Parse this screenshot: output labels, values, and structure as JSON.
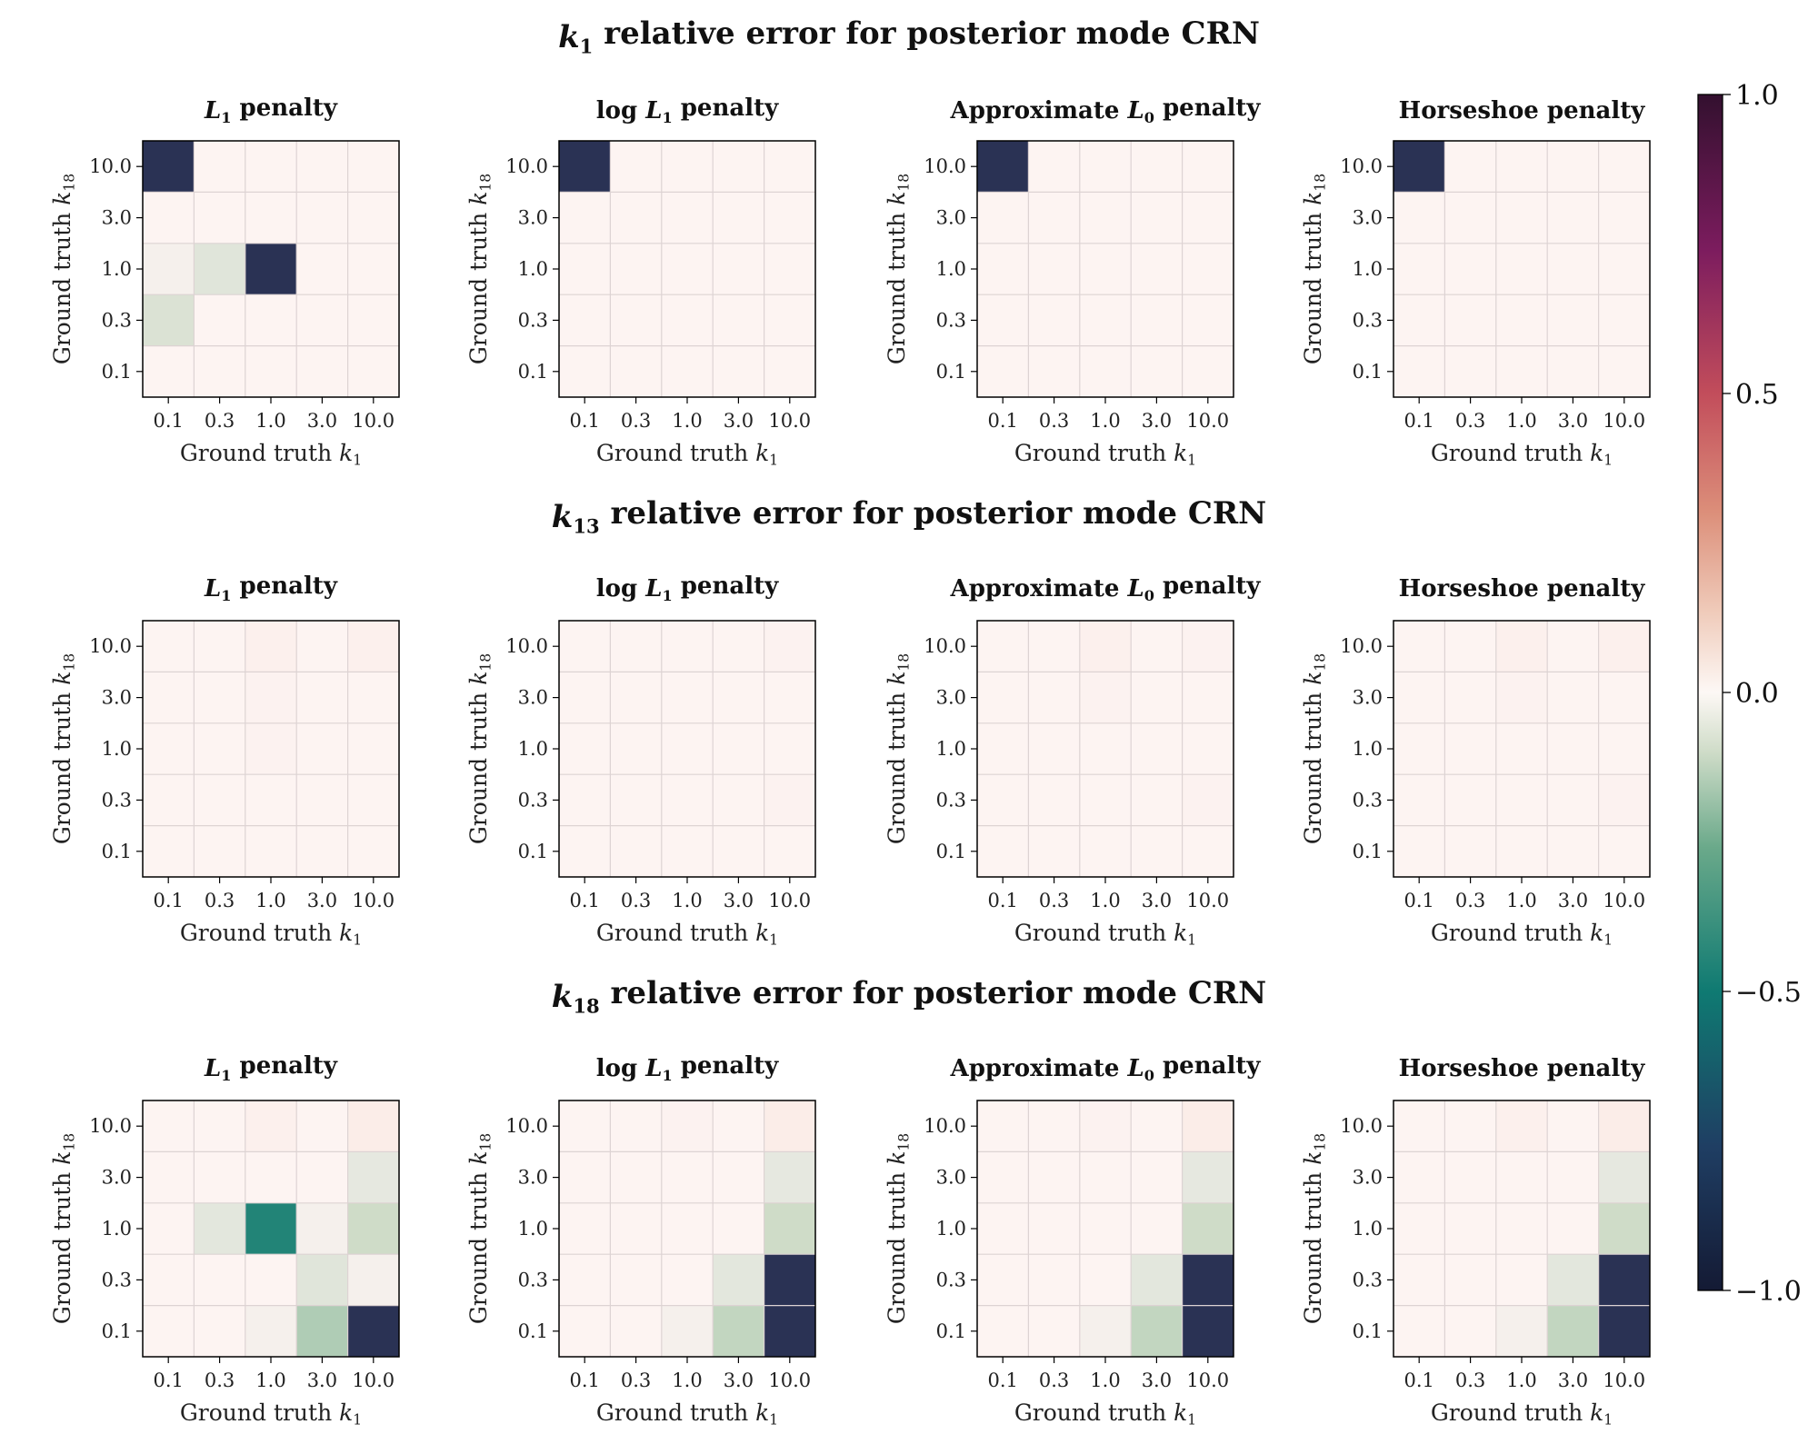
{
  "figure": {
    "row_titles": [
      {
        "var": "k",
        "sub": "1",
        "text": " relative error for posterior mode CRN"
      },
      {
        "var": "k",
        "sub": "13",
        "text": " relative error for posterior mode CRN"
      },
      {
        "var": "k",
        "sub": "18",
        "text": " relative error for posterior mode CRN"
      }
    ],
    "panel_titles": [
      {
        "pre": "",
        "var": "L",
        "sub": "1",
        "post": " penalty"
      },
      {
        "pre": "log ",
        "var": "L",
        "sub": "1",
        "post": " penalty"
      },
      {
        "pre": "Approximate ",
        "var": "L",
        "sub": "0",
        "post": " penalty"
      },
      {
        "pre": "Horseshoe penalty",
        "var": "",
        "sub": "",
        "post": ""
      }
    ],
    "xlabel": {
      "text": "Ground truth ",
      "var": "k",
      "sub": "1"
    },
    "ylabel": {
      "text": "Ground truth ",
      "var": "k",
      "sub": "18"
    },
    "colorbar_ticks": [
      "1.0",
      "0.5",
      "0.0",
      "−0.5",
      "−1.0"
    ]
  },
  "chart_data": {
    "type": "heatmap",
    "x_categories": [
      "0.1",
      "0.3",
      "1.0",
      "3.0",
      "10.0"
    ],
    "y_categories_top_to_bottom": [
      "10.0",
      "3.0",
      "1.0",
      "0.3",
      "0.1"
    ],
    "color_range": [
      -1.0,
      1.0
    ],
    "colormap": "curl-like diverging (dark navy -1, teal -0.5, white 0, salmon 0.5, dark purple 1)",
    "grid": true,
    "colorbar_position": "right",
    "rows": [
      {
        "parameter": "k1",
        "panels": [
          {
            "penalty": "L1",
            "values": [
              [
                -1.0,
                0.02,
                0.02,
                0.02,
                0.02
              ],
              [
                0.02,
                0.02,
                0.02,
                0.02,
                0.02
              ],
              [
                0.01,
                -0.04,
                -1.0,
                0.02,
                0.02
              ],
              [
                -0.06,
                0.02,
                0.02,
                0.02,
                0.02
              ],
              [
                0.02,
                0.02,
                0.02,
                0.02,
                0.02
              ]
            ]
          },
          {
            "penalty": "log L1",
            "values": [
              [
                -1.0,
                0.02,
                0.02,
                0.02,
                0.02
              ],
              [
                0.02,
                0.02,
                0.02,
                0.02,
                0.02
              ],
              [
                0.02,
                0.02,
                0.02,
                0.02,
                0.02
              ],
              [
                0.02,
                0.02,
                0.02,
                0.02,
                0.02
              ],
              [
                0.02,
                0.02,
                0.02,
                0.02,
                0.02
              ]
            ]
          },
          {
            "penalty": "Approximate L0",
            "values": [
              [
                -1.0,
                0.02,
                0.02,
                0.02,
                0.02
              ],
              [
                0.02,
                0.02,
                0.02,
                0.02,
                0.02
              ],
              [
                0.02,
                0.02,
                0.02,
                0.02,
                0.02
              ],
              [
                0.02,
                0.02,
                0.02,
                0.02,
                0.02
              ],
              [
                0.02,
                0.02,
                0.02,
                0.02,
                0.02
              ]
            ]
          },
          {
            "penalty": "Horseshoe",
            "values": [
              [
                -1.0,
                0.02,
                0.02,
                0.02,
                0.02
              ],
              [
                0.02,
                0.02,
                0.02,
                0.02,
                0.02
              ],
              [
                0.02,
                0.02,
                0.02,
                0.02,
                0.02
              ],
              [
                0.02,
                0.02,
                0.02,
                0.02,
                0.02
              ],
              [
                0.02,
                0.02,
                0.02,
                0.02,
                0.02
              ]
            ]
          }
        ]
      },
      {
        "parameter": "k13",
        "panels": [
          {
            "penalty": "L1",
            "values": [
              [
                0.02,
                0.02,
                0.03,
                0.02,
                0.03
              ],
              [
                0.02,
                0.02,
                0.025,
                0.02,
                0.02
              ],
              [
                0.02,
                0.02,
                0.025,
                0.02,
                0.02
              ],
              [
                0.02,
                0.02,
                0.02,
                0.02,
                0.02
              ],
              [
                0.02,
                0.02,
                0.02,
                0.02,
                0.02
              ]
            ]
          },
          {
            "penalty": "log L1",
            "values": [
              [
                0.02,
                0.02,
                0.02,
                0.02,
                0.025
              ],
              [
                0.02,
                0.02,
                0.02,
                0.02,
                0.02
              ],
              [
                0.02,
                0.02,
                0.02,
                0.02,
                0.02
              ],
              [
                0.02,
                0.02,
                0.02,
                0.02,
                0.025
              ],
              [
                0.02,
                0.02,
                0.02,
                0.02,
                0.02
              ]
            ]
          },
          {
            "penalty": "Approximate L0",
            "values": [
              [
                0.02,
                0.02,
                0.03,
                0.02,
                0.025
              ],
              [
                0.02,
                0.02,
                0.025,
                0.02,
                0.02
              ],
              [
                0.02,
                0.02,
                0.02,
                0.02,
                0.02
              ],
              [
                0.02,
                0.02,
                0.02,
                0.02,
                0.025
              ],
              [
                0.02,
                0.02,
                0.02,
                0.02,
                0.02
              ]
            ]
          },
          {
            "penalty": "Horseshoe",
            "values": [
              [
                0.02,
                0.02,
                0.03,
                0.02,
                0.03
              ],
              [
                0.02,
                0.02,
                0.025,
                0.02,
                0.02
              ],
              [
                0.02,
                0.02,
                0.02,
                0.02,
                0.02
              ],
              [
                0.02,
                0.02,
                0.02,
                0.02,
                0.025
              ],
              [
                0.02,
                0.02,
                0.02,
                0.02,
                0.02
              ]
            ]
          }
        ]
      },
      {
        "parameter": "k18",
        "panels": [
          {
            "penalty": "L1",
            "values": [
              [
                0.02,
                0.02,
                0.03,
                0.02,
                0.04
              ],
              [
                0.02,
                0.02,
                0.02,
                0.02,
                -0.02
              ],
              [
                0.02,
                -0.03,
                -0.45,
                0.01,
                -0.1
              ],
              [
                0.02,
                0.02,
                0.02,
                -0.04,
                0.01
              ],
              [
                0.02,
                0.02,
                0.01,
                -0.15,
                -1.0
              ]
            ]
          },
          {
            "penalty": "log L1",
            "values": [
              [
                0.02,
                0.02,
                0.025,
                0.02,
                0.04
              ],
              [
                0.02,
                0.02,
                0.02,
                0.02,
                -0.02
              ],
              [
                0.02,
                0.02,
                0.02,
                0.02,
                -0.1
              ],
              [
                0.02,
                0.02,
                0.02,
                -0.03,
                -1.0
              ],
              [
                0.02,
                0.02,
                0.01,
                -0.12,
                -1.0
              ]
            ]
          },
          {
            "penalty": "Approximate L0",
            "values": [
              [
                0.02,
                0.02,
                0.025,
                0.02,
                0.04
              ],
              [
                0.02,
                0.02,
                0.02,
                0.02,
                -0.02
              ],
              [
                0.02,
                0.02,
                0.02,
                0.02,
                -0.1
              ],
              [
                0.02,
                0.02,
                0.02,
                -0.03,
                -1.0
              ],
              [
                0.02,
                0.02,
                0.01,
                -0.12,
                -1.0
              ]
            ]
          },
          {
            "penalty": "Horseshoe",
            "values": [
              [
                0.02,
                0.02,
                0.03,
                0.02,
                0.04
              ],
              [
                0.02,
                0.02,
                0.02,
                0.02,
                -0.02
              ],
              [
                0.02,
                0.02,
                0.02,
                0.02,
                -0.1
              ],
              [
                0.02,
                0.02,
                0.02,
                -0.03,
                -1.0
              ],
              [
                0.02,
                0.02,
                0.01,
                -0.12,
                -1.0
              ]
            ]
          }
        ]
      }
    ]
  }
}
